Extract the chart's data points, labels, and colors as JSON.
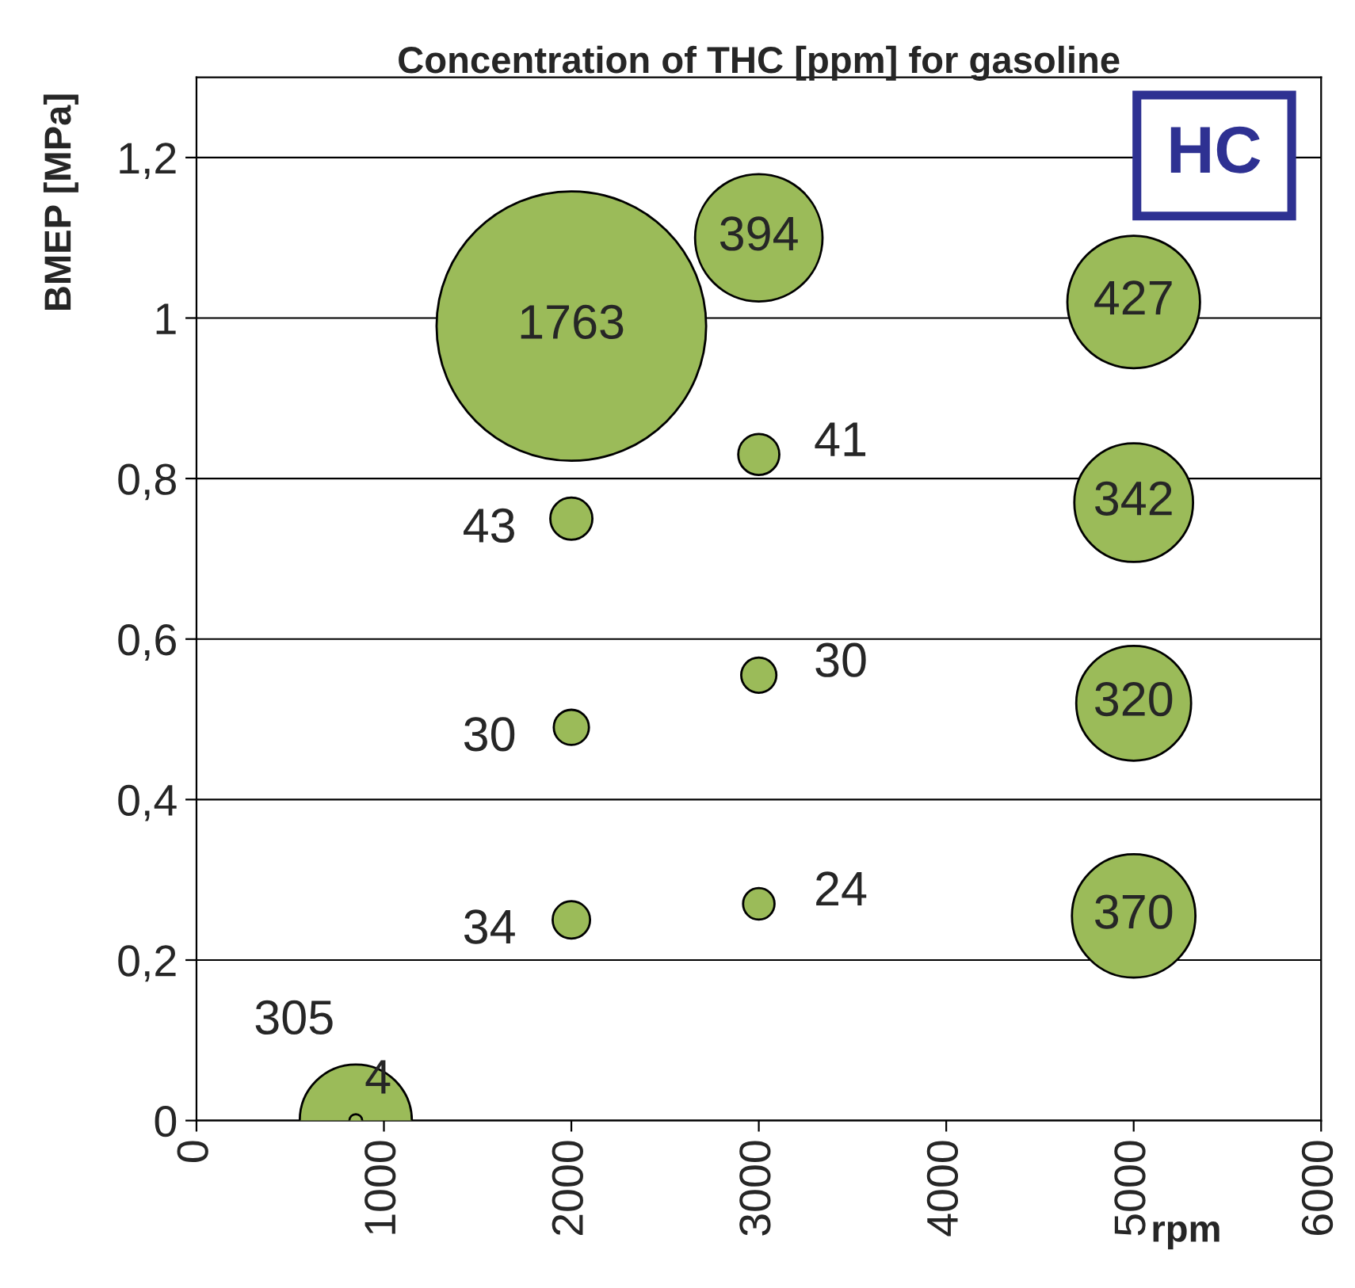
{
  "chart_data": {
    "type": "bubble",
    "title": "Concentration of THC [ppm] for gasoline",
    "xlabel": "rpm",
    "ylabel": "BMEP [MPa]",
    "annotations": [
      "HC"
    ],
    "series": [
      {
        "color": "#9bbb59",
        "x": [
          850,
          850,
          2000,
          2000,
          2000,
          2000,
          3000,
          3000,
          3000,
          3000,
          5000,
          5000,
          5000,
          5000
        ],
        "values": [
          0,
          0,
          0.99,
          0.75,
          0.49,
          0.25,
          1.1,
          0.83,
          0.555,
          0.27,
          1.02,
          0.77,
          0.52,
          0.255
        ],
        "sizes": [
          305,
          4,
          1763,
          43,
          30,
          34,
          394,
          41,
          30,
          24,
          427,
          342,
          320,
          370
        ],
        "value_labels": [
          "305",
          "4",
          "1763",
          "43",
          "30",
          "34",
          "394",
          "41",
          "30",
          "24",
          "427",
          "342",
          "320",
          "370"
        ]
      }
    ],
    "xlim": [
      0,
      6000
    ],
    "xticks": [
      0,
      1000,
      2000,
      3000,
      4000,
      5000,
      6000
    ],
    "ylim": [
      0,
      1.3
    ],
    "yticks": [
      {
        "value": 0,
        "label": "0"
      },
      {
        "value": 0.2,
        "label": "0,2"
      },
      {
        "value": 0.4,
        "label": "0,4"
      },
      {
        "value": 0.6,
        "label": "0,6"
      },
      {
        "value": 0.8,
        "label": "0,8"
      },
      {
        "value": 1.0,
        "label": "1"
      },
      {
        "value": 1.2,
        "label": "1,2"
      }
    ],
    "grid": "y",
    "legend": false
  }
}
